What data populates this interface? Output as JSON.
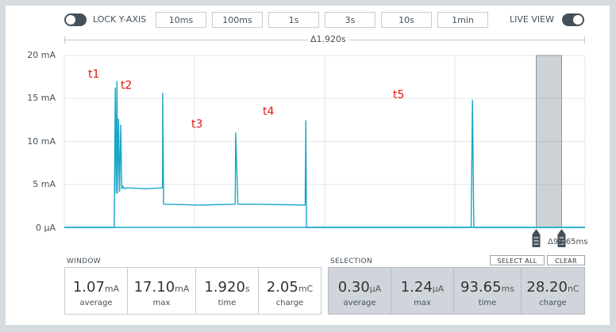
{
  "toolbar": {
    "lock_label": "LOCK Y-AXIS",
    "live_label": "LIVE VIEW",
    "time_buttons": [
      "10ms",
      "100ms",
      "1s",
      "3s",
      "10s",
      "1min"
    ]
  },
  "delta_top": "Δ1.920s",
  "y_axis": {
    "ticks": [
      "20 mA",
      "15 mA",
      "10 mA",
      "5 mA",
      "0 μA"
    ]
  },
  "markers": [
    "t1",
    "t2",
    "t3",
    "t4",
    "t5"
  ],
  "selection_marker_label": "Δ93.65ms",
  "window": {
    "title": "WINDOW",
    "stats": [
      {
        "value": "1.07",
        "unit": "mA",
        "caption": "average"
      },
      {
        "value": "17.10",
        "unit": "mA",
        "caption": "max"
      },
      {
        "value": "1.920",
        "unit": "s",
        "caption": "time"
      },
      {
        "value": "2.05",
        "unit": "mC",
        "caption": "charge"
      }
    ]
  },
  "selection": {
    "title": "SELECTION",
    "select_all": "SELECT ALL",
    "clear": "CLEAR",
    "stats": [
      {
        "value": "0.30",
        "unit": "μA",
        "caption": "average"
      },
      {
        "value": "1.24",
        "unit": "μA",
        "caption": "max"
      },
      {
        "value": "93.65",
        "unit": "ms",
        "caption": "time"
      },
      {
        "value": "28.20",
        "unit": "nC",
        "caption": "charge"
      }
    ]
  },
  "colors": {
    "trace": "#1aa6c8",
    "marker_text": "#e3140f",
    "accent": "#44505a"
  },
  "chart_data": {
    "type": "line",
    "series": [
      {
        "x": [
          0,
          0.176,
          0.184,
          0.188,
          0.191,
          0.194,
          0.197,
          0.2,
          0.204,
          0.208,
          0.212,
          0.216,
          0.222,
          0.23,
          0.3,
          0.362,
          0.363,
          0.366,
          0.5,
          0.63,
          0.632,
          0.64,
          0.7,
          0.888,
          0.8905,
          0.893,
          0.9,
          1.0,
          1.5,
          1.505,
          1.51,
          1.92
        ],
        "y": [
          0,
          0,
          0,
          16.2,
          4,
          17.0,
          4,
          12.6,
          4.2,
          11.9,
          4.5,
          4.8,
          4.5,
          4.6,
          4.5,
          4.6,
          15.6,
          2.7,
          2.6,
          2.7,
          11.0,
          2.7,
          2.7,
          2.6,
          12.4,
          0,
          0,
          0,
          0,
          14.8,
          0,
          0
        ]
      }
    ],
    "xlim": [
      0,
      1.92
    ],
    "ylim": [
      0,
      20
    ],
    "yunit": "mA",
    "selection_x": [
      1.74,
      1.8336
    ],
    "grid": true
  }
}
